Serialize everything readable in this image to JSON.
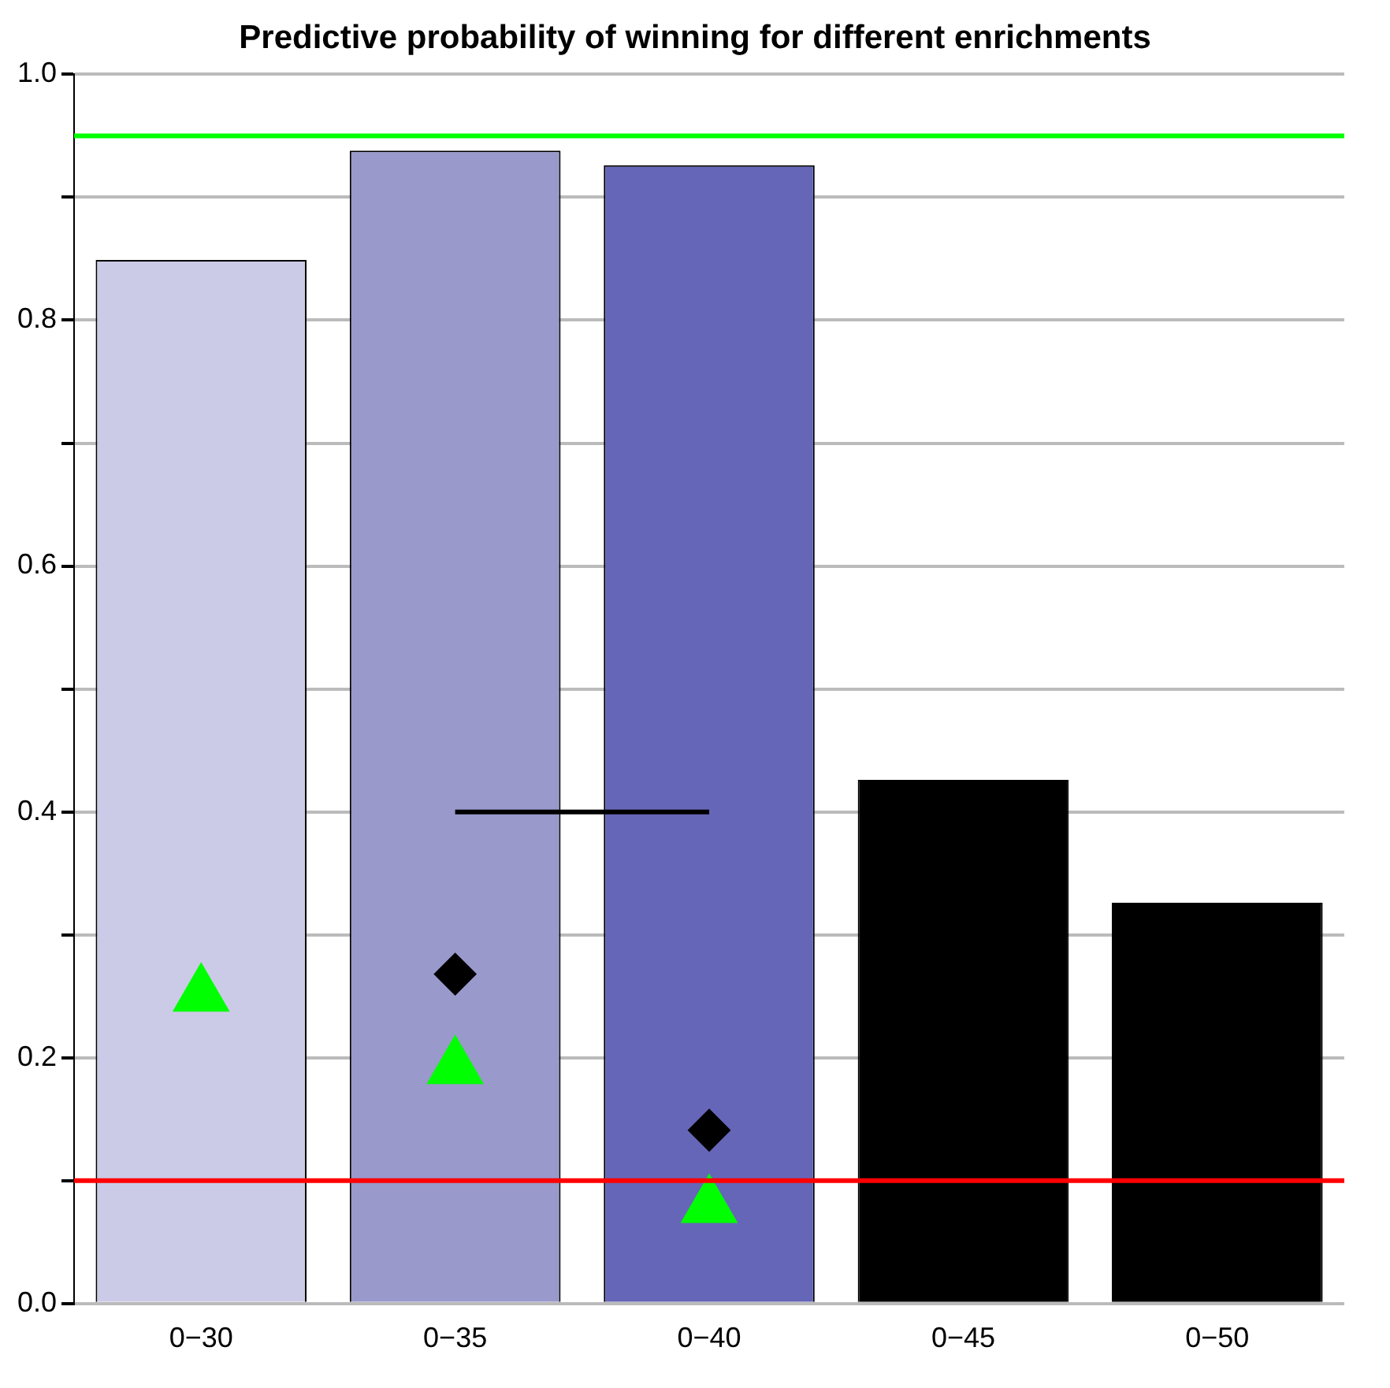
{
  "chart_data": {
    "type": "bar",
    "title": "Predictive probability of winning for different enrichments",
    "categories": [
      "0−30",
      "0−35",
      "0−40",
      "0−45",
      "0−50"
    ],
    "series": [
      {
        "colors": [
          "#cbcbe7",
          "#9999cc",
          "#6666b8",
          "#000000",
          "#000000"
        ],
        "values": [
          0.849,
          0.938,
          0.926,
          0.426,
          0.326
        ]
      },
      {
        "type": "line",
        "color": "#000000",
        "marker": "none",
        "values": [
          null,
          0.4,
          0.4,
          null,
          null
        ]
      },
      {
        "type": "scatter",
        "color": "#000000",
        "marker": "diamond",
        "values": [
          null,
          0.268,
          0.141,
          null,
          null
        ]
      },
      {
        "type": "scatter",
        "color": "#00ff00",
        "marker": "triangle",
        "values": [
          0.251,
          0.192,
          0.079,
          null,
          null
        ]
      }
    ],
    "ref_lines": [
      {
        "axis": "y",
        "value": 0.95,
        "color": "#00ff00"
      },
      {
        "axis": "y",
        "value": 0.1,
        "color": "#ff0000"
      }
    ],
    "ylim": [
      0,
      1
    ],
    "yticks": [
      {
        "value": 0,
        "label": "0.0"
      },
      {
        "value": 0.1,
        "label": null
      },
      0.2,
      {
        "value": 0.3,
        "label": null
      },
      0.4,
      {
        "value": 0.5,
        "label": null
      },
      0.6,
      {
        "value": 0.7,
        "label": null
      },
      0.8,
      {
        "value": 0.9,
        "label": null
      },
      {
        "value": 1,
        "label": "1.0"
      }
    ],
    "grid": "y",
    "legend": false
  }
}
